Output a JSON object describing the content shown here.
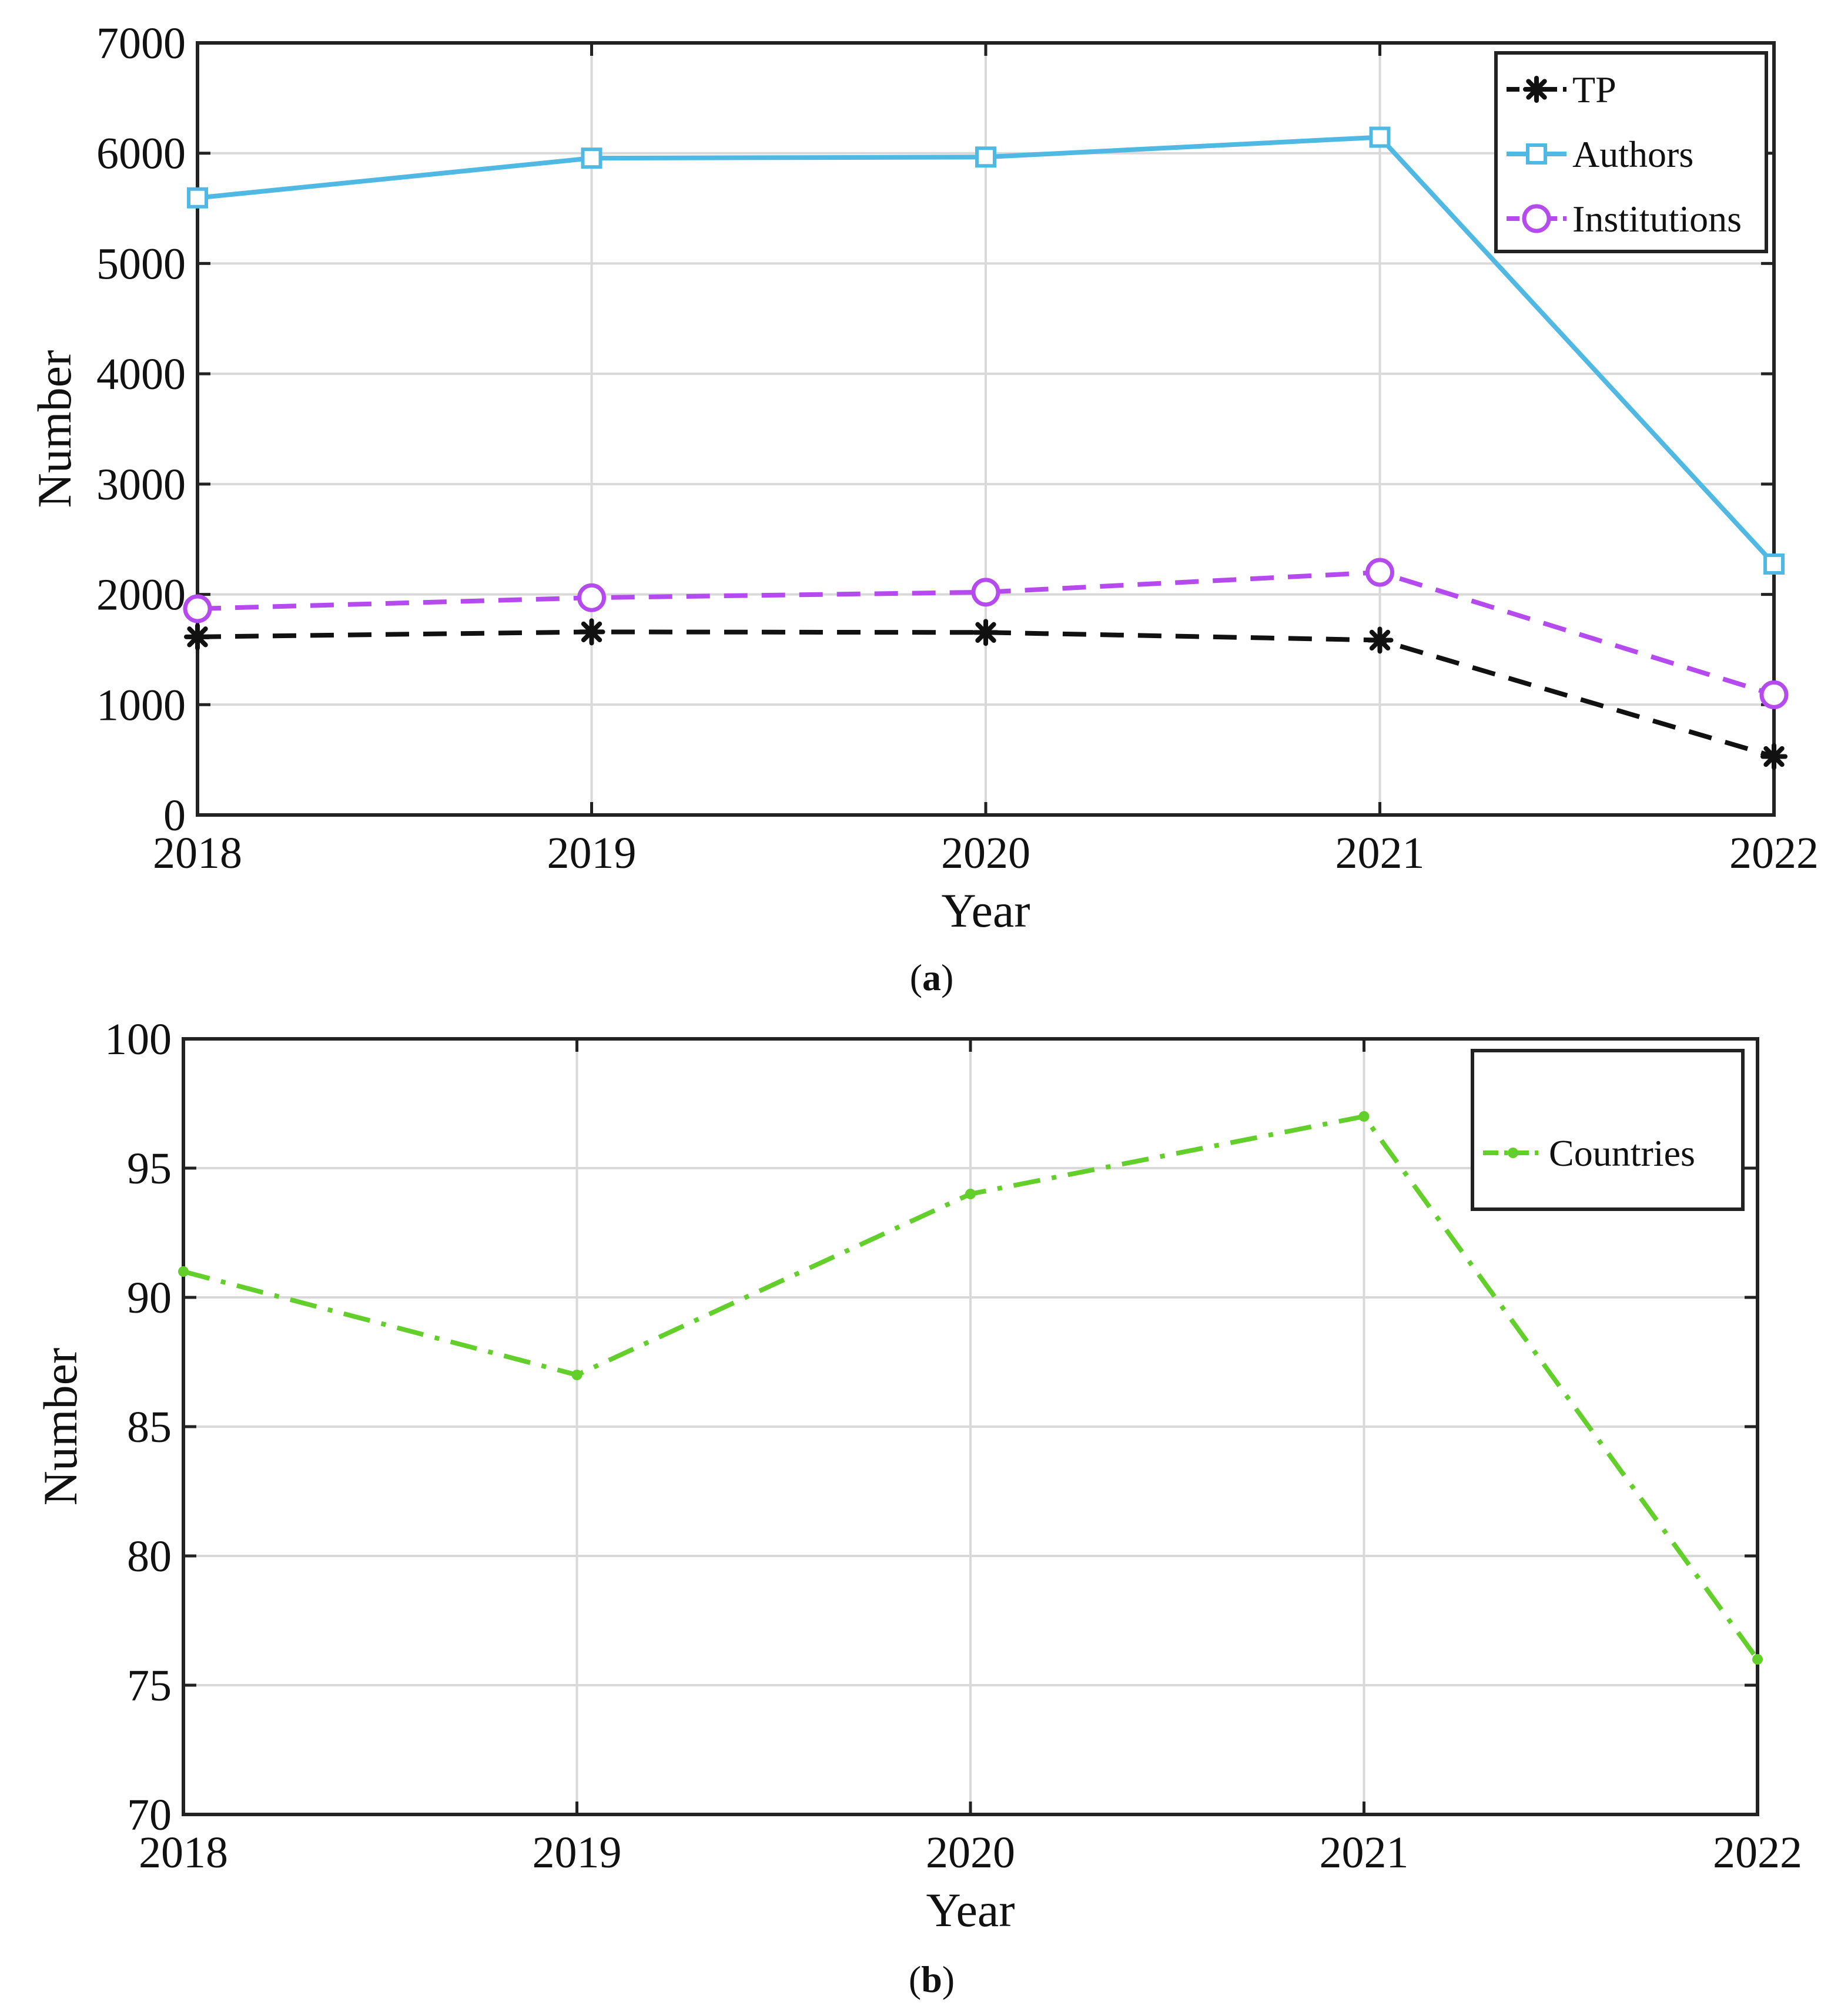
{
  "chart_data": [
    {
      "type": "line",
      "panel_label": "a",
      "x": [
        2018,
        2019,
        2020,
        2021,
        2022
      ],
      "xlabel": "Year",
      "ylabel": "Number",
      "xlim": [
        2018,
        2022
      ],
      "ylim": [
        0,
        7000
      ],
      "xticks": [
        "2018",
        "2019",
        "2020",
        "2021",
        "2022"
      ],
      "yticks": [
        "0",
        "1000",
        "2000",
        "3000",
        "4000",
        "5000",
        "6000",
        "7000"
      ],
      "grid": true,
      "legend": "top-right",
      "series": [
        {
          "name": "TP",
          "color": "#111111",
          "dash": "dashed",
          "marker": "asterisk",
          "values": [
            1615,
            1660,
            1655,
            1585,
            530
          ]
        },
        {
          "name": "Authors",
          "color": "#4fb9e3",
          "dash": "solid",
          "marker": "square",
          "values": [
            5595,
            5955,
            5965,
            6145,
            2275
          ]
        },
        {
          "name": "Institutions",
          "color": "#b54bef",
          "dash": "dashed",
          "marker": "circle",
          "values": [
            1870,
            1970,
            2020,
            2200,
            1090
          ]
        }
      ]
    },
    {
      "type": "line",
      "panel_label": "b",
      "x": [
        2018,
        2019,
        2020,
        2021,
        2022
      ],
      "xlabel": "Year",
      "ylabel": "Number",
      "xlim": [
        2018,
        2022
      ],
      "ylim": [
        70,
        100
      ],
      "xticks": [
        "2018",
        "2019",
        "2020",
        "2021",
        "2022"
      ],
      "yticks": [
        "70",
        "75",
        "80",
        "85",
        "90",
        "95",
        "100"
      ],
      "grid": true,
      "legend": "top-right",
      "series": [
        {
          "name": "Countries",
          "color": "#63cf2a",
          "dash": "dashdot",
          "marker": "dot",
          "values": [
            91,
            87,
            94,
            97,
            76
          ]
        }
      ]
    }
  ]
}
